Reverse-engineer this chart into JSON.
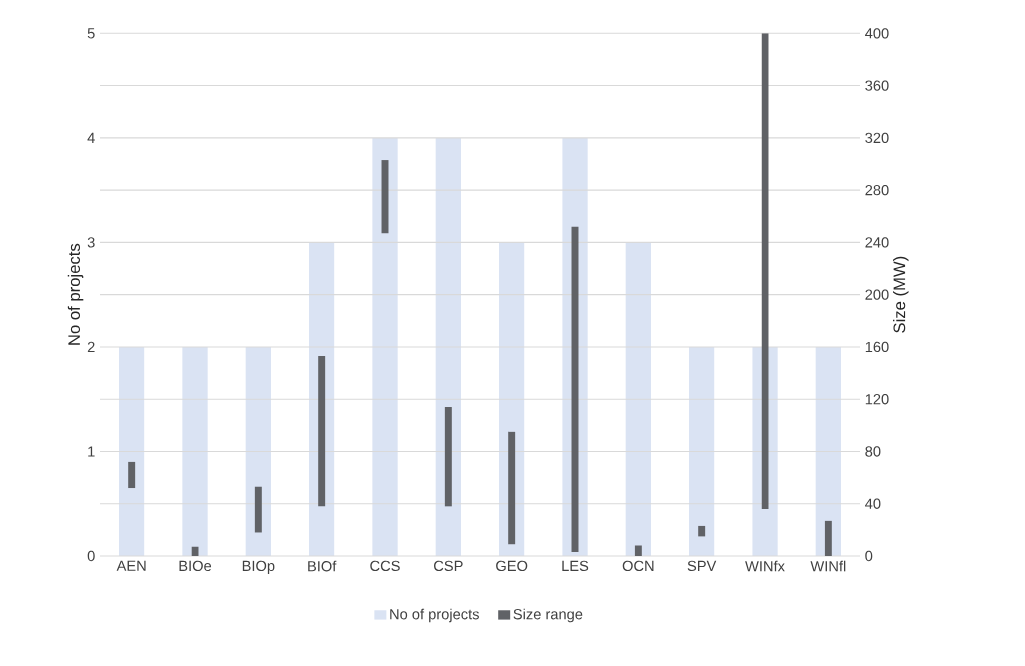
{
  "chart_data": {
    "type": "bar",
    "categories": [
      "AEN",
      "BIOe",
      "BIOp",
      "BIOf",
      "CCS",
      "CSP",
      "GEO",
      "LES",
      "OCN",
      "SPV",
      "WINfx",
      "WINfl"
    ],
    "ylabel": "No of projects",
    "y2label": "Size (MW)",
    "ylim": [
      0,
      5
    ],
    "yticks": [
      0,
      1,
      2,
      3,
      4,
      5
    ],
    "y2lim": [
      0,
      400
    ],
    "y2ticks": [
      0,
      40,
      80,
      120,
      160,
      200,
      240,
      280,
      320,
      360,
      400
    ],
    "grid": true,
    "legend": "bottom",
    "series": [
      {
        "name": "No of projects",
        "color": "#dae3f3",
        "values": [
          2,
          2,
          2,
          3,
          4,
          4,
          3,
          4,
          3,
          2,
          2,
          2
        ]
      },
      {
        "name": "Size range",
        "color": "#606266",
        "axis": "y2",
        "base": [
          52,
          0,
          18,
          38,
          247,
          38,
          9,
          3,
          0,
          15,
          36,
          0
        ],
        "values": [
          20,
          7,
          35,
          115,
          56,
          76,
          86,
          249,
          8,
          8,
          364,
          27
        ]
      }
    ]
  }
}
